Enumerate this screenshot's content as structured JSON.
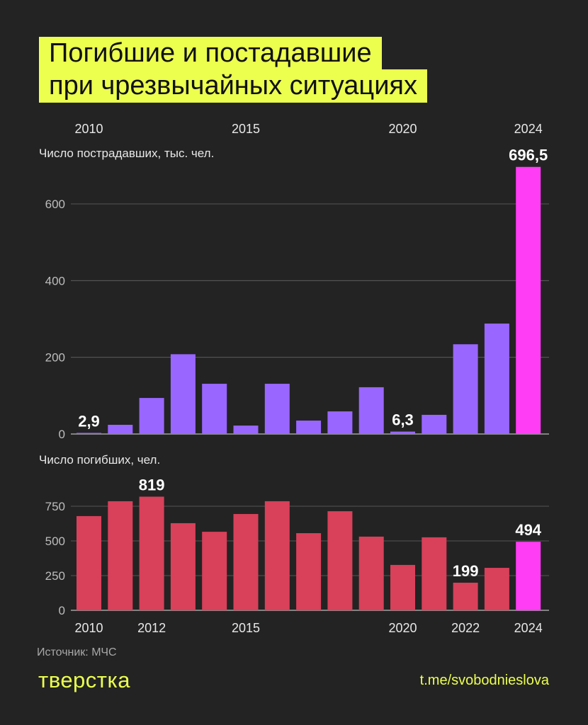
{
  "title": [
    "Погибшие и постадавшие",
    "при чрезвычайных ситуациях"
  ],
  "source": "Источник: МЧС",
  "logo": "тверстка",
  "channel": "t.me/svobodnieslova",
  "colors": {
    "background": "#232323",
    "title_bg": "#ecff4f",
    "injured": "#9966ff",
    "deaths": "#d9405a",
    "highlight": "#ff3df5"
  },
  "chart_data": [
    {
      "type": "bar",
      "ylabel": "Число пострадавших, тыс. чел.",
      "categories": [
        2010,
        2011,
        2012,
        2013,
        2014,
        2015,
        2016,
        2017,
        2018,
        2019,
        2020,
        2021,
        2022,
        2023,
        2024
      ],
      "x_tick_labels": [
        "2010",
        "2015",
        "2020",
        "2024"
      ],
      "values": [
        2.9,
        24,
        94,
        208,
        131,
        22,
        131,
        35,
        59,
        122,
        6.3,
        50,
        234,
        288,
        696.5
      ],
      "data_labels": {
        "2010": "2,9",
        "2020": "6,3",
        "2024": "696,5"
      },
      "ylim": [
        0,
        700
      ],
      "y_ticks": [
        0,
        200,
        400,
        600
      ],
      "grid": true,
      "highlight": 2024
    },
    {
      "type": "bar",
      "ylabel": "Число погибших, чел.",
      "categories": [
        2010,
        2011,
        2012,
        2013,
        2014,
        2015,
        2016,
        2017,
        2018,
        2019,
        2020,
        2021,
        2022,
        2023,
        2024
      ],
      "x_tick_labels": [
        "2010",
        "2012",
        "2015",
        "2020",
        "2022",
        "2024"
      ],
      "values": [
        679,
        786,
        819,
        628,
        566,
        694,
        786,
        556,
        714,
        531,
        327,
        526,
        199,
        306,
        494
      ],
      "data_labels": {
        "2012": "819",
        "2022": "199",
        "2024": "494"
      },
      "ylim": [
        0,
        850
      ],
      "y_ticks": [
        0,
        250,
        500,
        750
      ],
      "grid": true,
      "highlight": 2024
    }
  ]
}
